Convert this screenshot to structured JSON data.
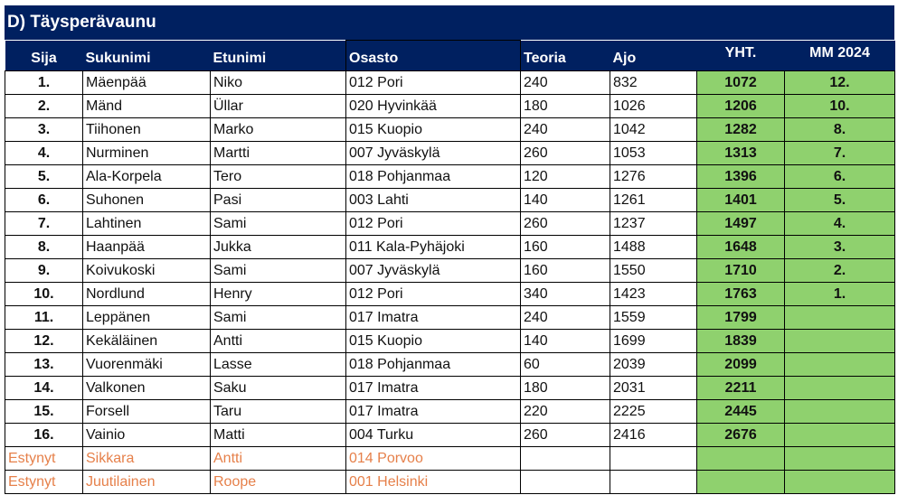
{
  "title": "D) Täysperävaunu",
  "colors": {
    "header_bg": "#002060",
    "header_text": "#ffffff",
    "score_fill": "#8fd16e",
    "dnf_text": "#e6804a"
  },
  "headers": {
    "sija": "Sija",
    "sukunimi": "Sukunimi",
    "etunimi": "Etunimi",
    "osasto": "Osasto",
    "teoria": "Teoria",
    "ajo": "Ajo",
    "yht": "YHT.",
    "mm": "MM 2024"
  },
  "rows": [
    {
      "sija": "1.",
      "sukunimi": "Mäenpää",
      "etunimi": "Niko",
      "osasto": "012 Pori",
      "teoria": "240",
      "ajo": "832",
      "yht": "1072",
      "mm": "12."
    },
    {
      "sija": "2.",
      "sukunimi": "Mänd",
      "etunimi": "Üllar",
      "osasto": "020 Hyvinkää",
      "teoria": "180",
      "ajo": "1026",
      "yht": "1206",
      "mm": "10."
    },
    {
      "sija": "3.",
      "sukunimi": "Tiihonen",
      "etunimi": "Marko",
      "osasto": "015 Kuopio",
      "teoria": "240",
      "ajo": "1042",
      "yht": "1282",
      "mm": "8."
    },
    {
      "sija": "4.",
      "sukunimi": "Nurminen",
      "etunimi": "Martti",
      "osasto": "007 Jyväskylä",
      "teoria": "260",
      "ajo": "1053",
      "yht": "1313",
      "mm": "7."
    },
    {
      "sija": "5.",
      "sukunimi": "Ala-Korpela",
      "etunimi": "Tero",
      "osasto": "018 Pohjanmaa",
      "teoria": "120",
      "ajo": "1276",
      "yht": "1396",
      "mm": "6."
    },
    {
      "sija": "6.",
      "sukunimi": "Suhonen",
      "etunimi": "Pasi",
      "osasto": "003 Lahti",
      "teoria": "140",
      "ajo": "1261",
      "yht": "1401",
      "mm": "5."
    },
    {
      "sija": "7.",
      "sukunimi": "Lahtinen",
      "etunimi": "Sami",
      "osasto": "012 Pori",
      "teoria": "260",
      "ajo": "1237",
      "yht": "1497",
      "mm": "4."
    },
    {
      "sija": "8.",
      "sukunimi": "Haanpää",
      "etunimi": "Jukka",
      "osasto": "011 Kala-Pyhäjoki",
      "teoria": "160",
      "ajo": "1488",
      "yht": "1648",
      "mm": "3."
    },
    {
      "sija": "9.",
      "sukunimi": "Koivukoski",
      "etunimi": "Sami",
      "osasto": "007 Jyväskylä",
      "teoria": "160",
      "ajo": "1550",
      "yht": "1710",
      "mm": "2."
    },
    {
      "sija": "10.",
      "sukunimi": "Nordlund",
      "etunimi": "Henry",
      "osasto": "012 Pori",
      "teoria": "340",
      "ajo": "1423",
      "yht": "1763",
      "mm": "1."
    },
    {
      "sija": "11.",
      "sukunimi": "Leppänen",
      "etunimi": "Sami",
      "osasto": "017 Imatra",
      "teoria": "240",
      "ajo": "1559",
      "yht": "1799",
      "mm": ""
    },
    {
      "sija": "12.",
      "sukunimi": "Kekäläinen",
      "etunimi": "Antti",
      "osasto": "015 Kuopio",
      "teoria": "140",
      "ajo": "1699",
      "yht": "1839",
      "mm": ""
    },
    {
      "sija": "13.",
      "sukunimi": "Vuorenmäki",
      "etunimi": "Lasse",
      "osasto": "018 Pohjanmaa",
      "teoria": "60",
      "ajo": "2039",
      "yht": "2099",
      "mm": ""
    },
    {
      "sija": "14.",
      "sukunimi": "Valkonen",
      "etunimi": "Saku",
      "osasto": "017 Imatra",
      "teoria": "180",
      "ajo": "2031",
      "yht": "2211",
      "mm": ""
    },
    {
      "sija": "15.",
      "sukunimi": "Forsell",
      "etunimi": "Taru",
      "osasto": "017 Imatra",
      "teoria": "220",
      "ajo": "2225",
      "yht": "2445",
      "mm": ""
    },
    {
      "sija": "16.",
      "sukunimi": "Vainio",
      "etunimi": "Matti",
      "osasto": "004 Turku",
      "teoria": "260",
      "ajo": "2416",
      "yht": "2676",
      "mm": ""
    }
  ],
  "dnf_rows": [
    {
      "sija": "Estynyt",
      "sukunimi": "Sikkara",
      "etunimi": "Antti",
      "osasto": "014 Porvoo",
      "teoria": "",
      "ajo": "",
      "yht": "",
      "mm": ""
    },
    {
      "sija": "Estynyt",
      "sukunimi": "Juutilainen",
      "etunimi": "Roope",
      "osasto": "001 Helsinki",
      "teoria": "",
      "ajo": "",
      "yht": "",
      "mm": ""
    }
  ]
}
